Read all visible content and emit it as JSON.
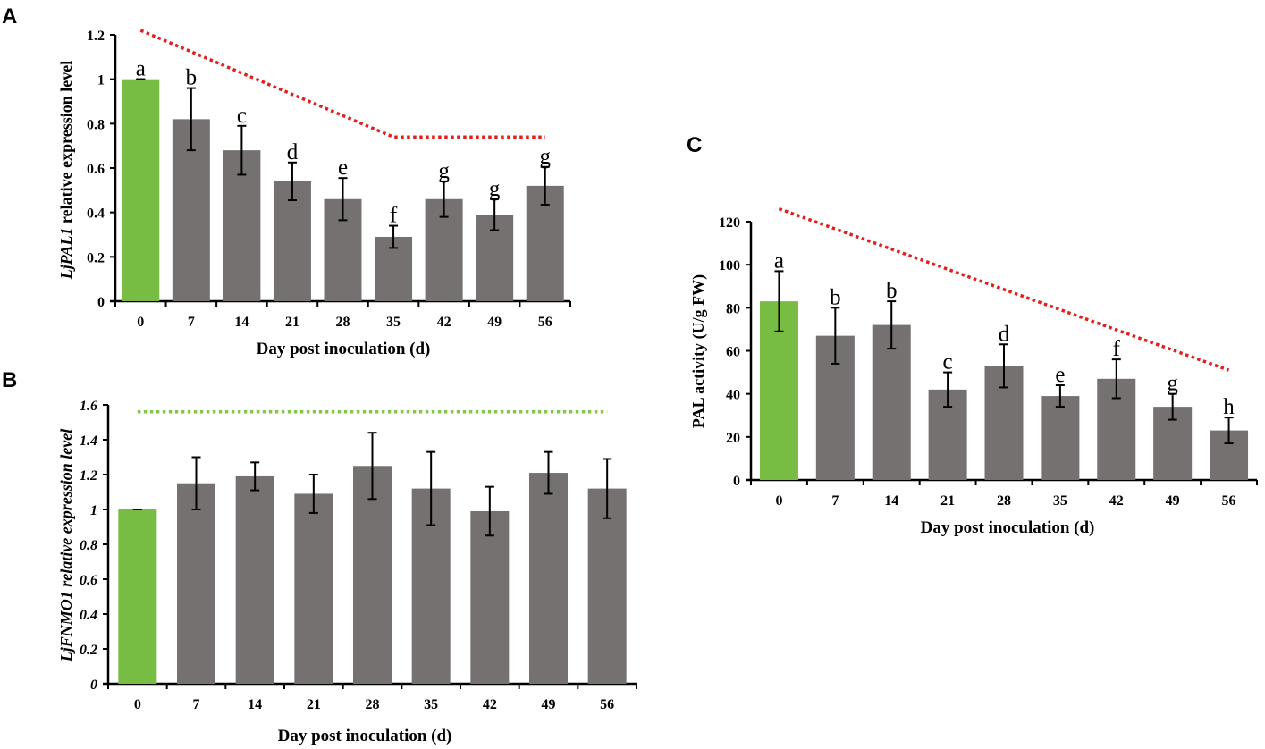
{
  "chart_data": [
    {
      "panel": "A",
      "type": "bar",
      "categories": [
        "0",
        "7",
        "14",
        "21",
        "28",
        "35",
        "42",
        "49",
        "56"
      ],
      "values": [
        1.0,
        0.82,
        0.68,
        0.54,
        0.46,
        0.29,
        0.46,
        0.39,
        0.52
      ],
      "errors": [
        0.0,
        0.14,
        0.11,
        0.085,
        0.095,
        0.05,
        0.08,
        0.07,
        0.085
      ],
      "significance": [
        "a",
        "b",
        "c",
        "d",
        "e",
        "f",
        "g",
        "g",
        "g"
      ],
      "bar_colors": [
        "#77bd43",
        "#767171",
        "#767171",
        "#767171",
        "#767171",
        "#767171",
        "#767171",
        "#767171",
        "#767171"
      ],
      "ylim": [
        0,
        1.2
      ],
      "yticks": [
        "0",
        "0.2",
        "0.4",
        "0.6",
        "0.8",
        "1",
        "1.2"
      ],
      "xlabel": "Day post inoculation (d)",
      "ylabel_italic": "LjPAL1",
      "ylabel_rest": " relative expression level",
      "trend_line": {
        "color": "#e0201c",
        "points": [
          [
            0,
            1.22
          ],
          [
            5,
            0.74
          ],
          [
            8,
            0.74
          ]
        ]
      }
    },
    {
      "panel": "B",
      "type": "bar",
      "categories": [
        "0",
        "7",
        "14",
        "21",
        "28",
        "35",
        "42",
        "49",
        "56"
      ],
      "values": [
        1.0,
        1.15,
        1.19,
        1.09,
        1.25,
        1.12,
        0.99,
        1.21,
        1.12
      ],
      "errors": [
        0.0,
        0.15,
        0.08,
        0.11,
        0.19,
        0.21,
        0.14,
        0.12,
        0.17
      ],
      "significance": [],
      "bar_colors": [
        "#77bd43",
        "#767171",
        "#767171",
        "#767171",
        "#767171",
        "#767171",
        "#767171",
        "#767171",
        "#767171"
      ],
      "ylim": [
        0,
        1.6
      ],
      "yticks": [
        "0",
        "0.2",
        "0.4",
        "0.6",
        "0.8",
        "1",
        "1.2",
        "1.4",
        "1.6"
      ],
      "xlabel": "Day post inoculation (d)",
      "ylabel_italic": "LjFNMO1 relative expression level",
      "ylabel_rest": "",
      "trend_line": {
        "color": "#86c54a",
        "points": [
          [
            0,
            1.56
          ],
          [
            8,
            1.56
          ]
        ]
      }
    },
    {
      "panel": "C",
      "type": "bar",
      "categories": [
        "0",
        "7",
        "14",
        "21",
        "28",
        "35",
        "42",
        "49",
        "56"
      ],
      "values": [
        83,
        67,
        72,
        42,
        53,
        39,
        47,
        34,
        23
      ],
      "errors": [
        14,
        13,
        11,
        8,
        10,
        5,
        9,
        6,
        6
      ],
      "significance": [
        "a",
        "b",
        "b",
        "c",
        "d",
        "e",
        "f",
        "g",
        "h"
      ],
      "bar_colors": [
        "#77bd43",
        "#767171",
        "#767171",
        "#767171",
        "#767171",
        "#767171",
        "#767171",
        "#767171",
        "#767171"
      ],
      "ylim": [
        0,
        120
      ],
      "yticks": [
        "0",
        "20",
        "40",
        "60",
        "80",
        "100",
        "120"
      ],
      "xlabel": "Day post inoculation (d)",
      "ylabel_italic": "",
      "ylabel_rest": "PAL activity (U/g FW)",
      "trend_line": {
        "color": "#e0201c",
        "points": [
          [
            0,
            126
          ],
          [
            8,
            51
          ]
        ]
      }
    }
  ]
}
